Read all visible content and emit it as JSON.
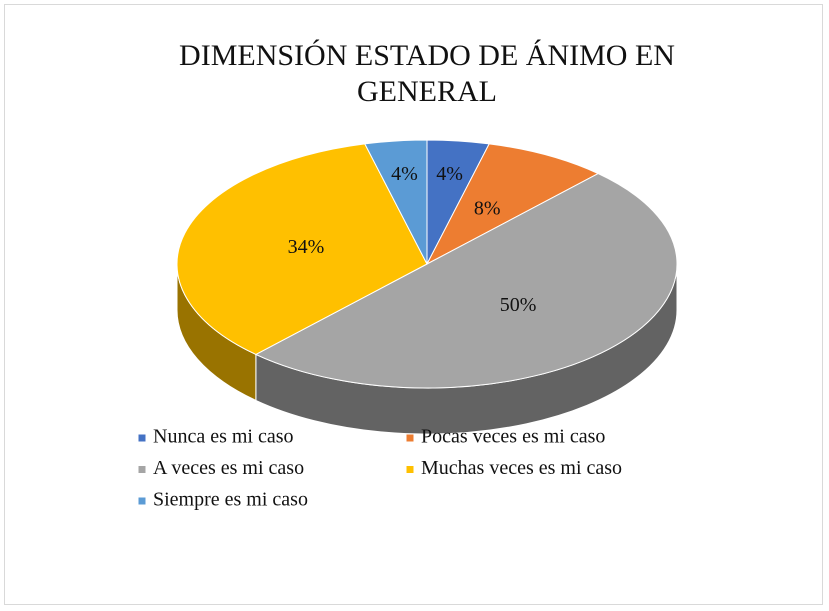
{
  "chart_data": {
    "type": "pie",
    "title": "DIMENSIÓN ESTADO DE ÁNIMO EN GENERAL",
    "categories": [
      "Nunca es mi caso",
      "Pocas veces es mi caso",
      "A veces es mi caso",
      "Muchas veces es mi caso",
      "Siempre es mi caso"
    ],
    "values": [
      4,
      8,
      50,
      34,
      4
    ],
    "value_labels": [
      "4%",
      "8%",
      "50%",
      "34%",
      "4%"
    ],
    "colors": [
      "#4472c4",
      "#ed7d31",
      "#a5a5a5",
      "#ffc000",
      "#5b9bd5"
    ],
    "legend": "bottom"
  }
}
